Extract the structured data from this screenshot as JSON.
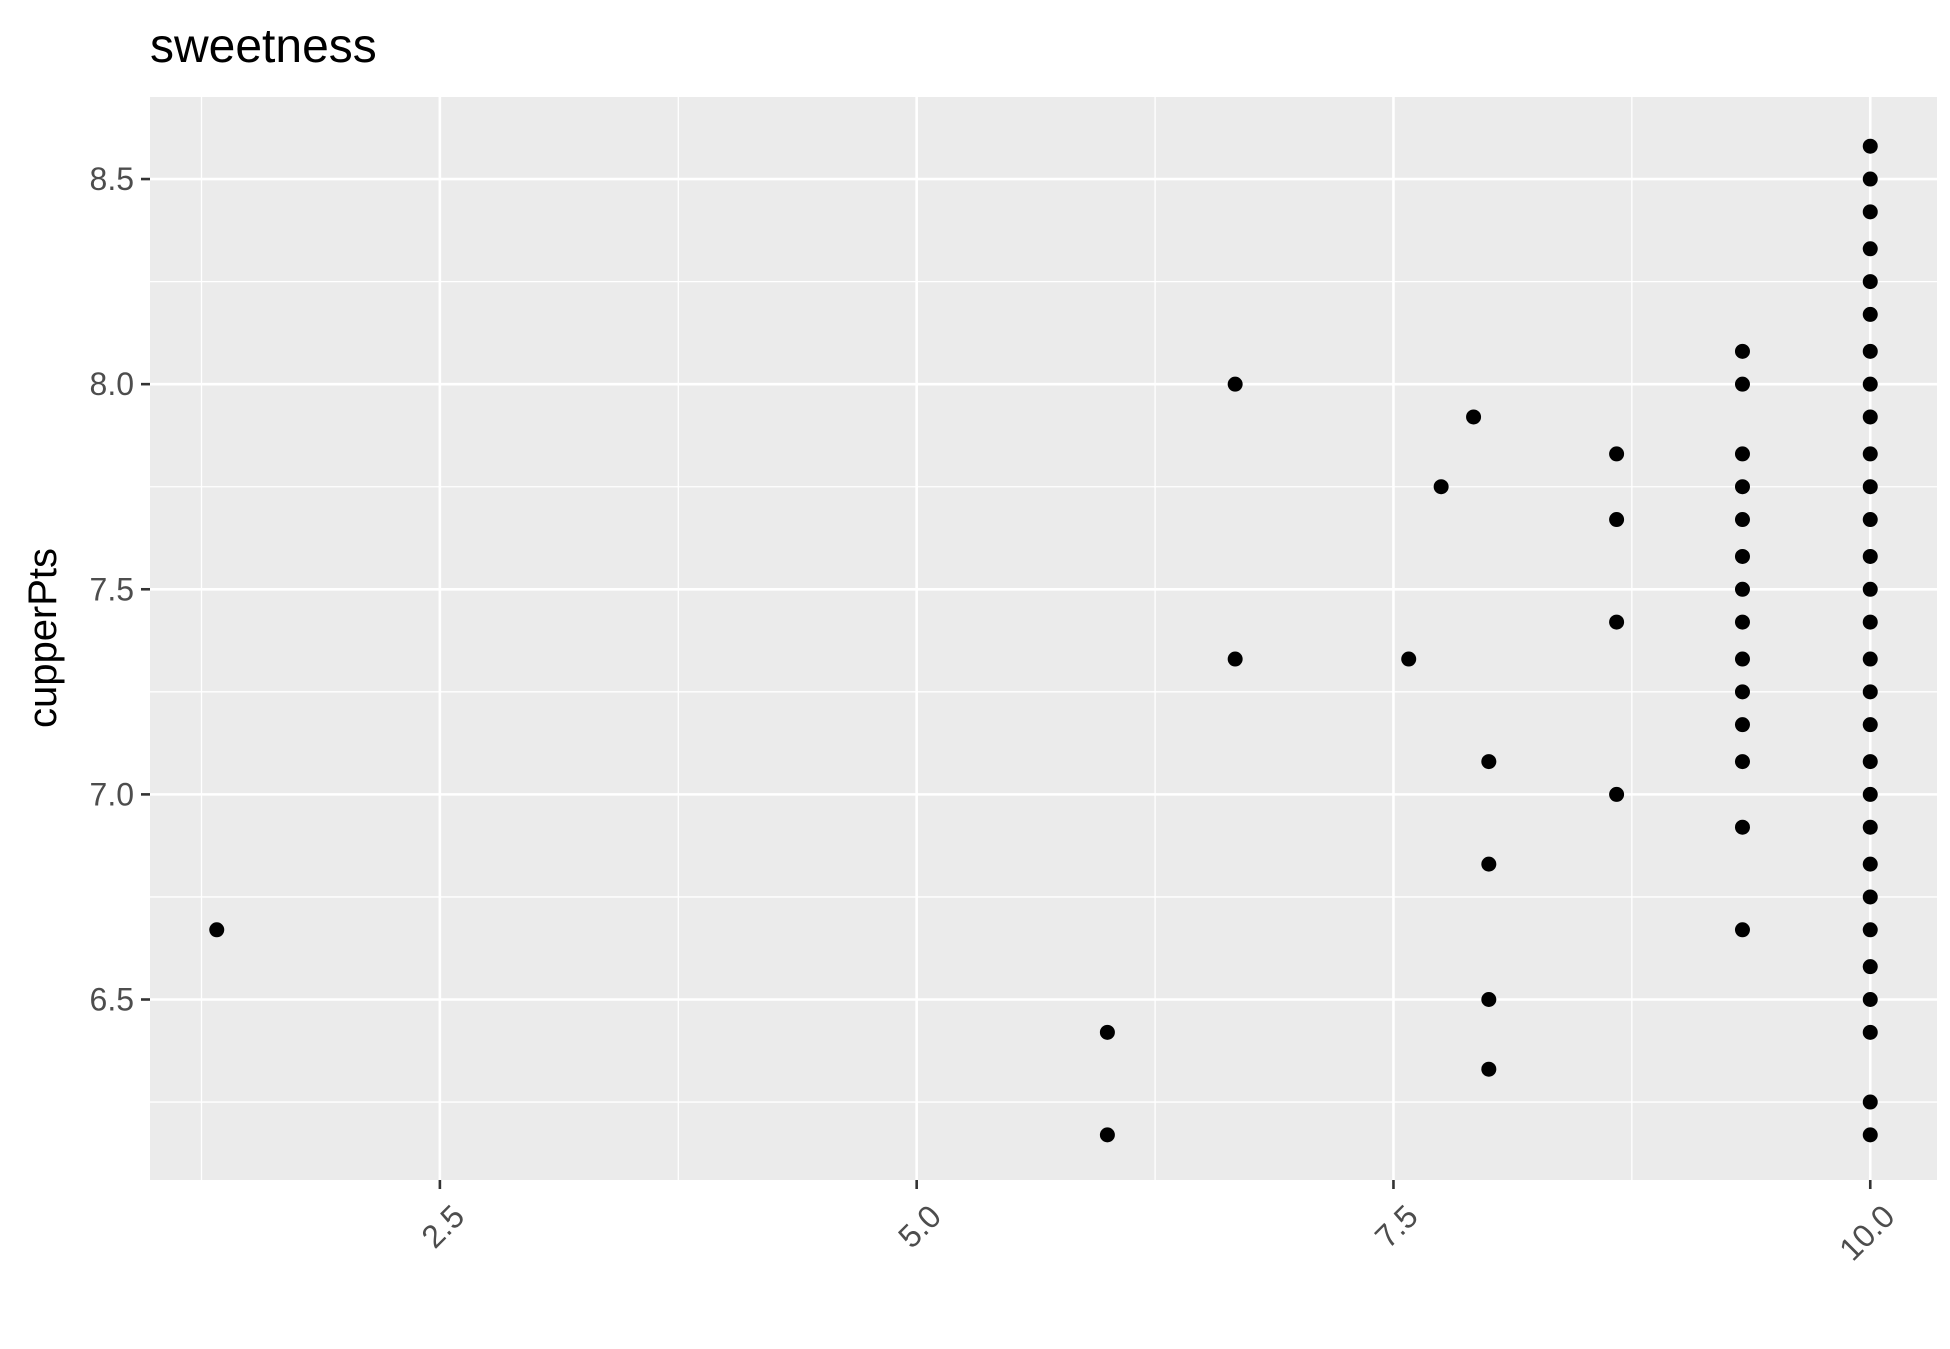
{
  "chart_data": {
    "type": "scatter",
    "title": "sweetness",
    "xlabel": "",
    "ylabel": "cupperPts",
    "xlim": [
      0.98,
      10.35
    ],
    "ylim": [
      6.06,
      8.7
    ],
    "x_ticks": [
      2.5,
      5.0,
      7.5,
      10.0
    ],
    "x_tick_labels": [
      "2.5",
      "5.0",
      "7.5",
      "10.0"
    ],
    "y_ticks": [
      6.5,
      7.0,
      7.5,
      8.0,
      8.5
    ],
    "y_tick_labels": [
      "6.5",
      "7.0",
      "7.5",
      "8.0",
      "8.5"
    ],
    "grid": true,
    "point_color": "#000000",
    "panel_color": "#ebebeb",
    "points": [
      {
        "x": 1.33,
        "y": 6.67
      },
      {
        "x": 6.0,
        "y": 6.42
      },
      {
        "x": 6.0,
        "y": 6.17
      },
      {
        "x": 6.67,
        "y": 8.0
      },
      {
        "x": 6.67,
        "y": 7.33
      },
      {
        "x": 7.58,
        "y": 7.33
      },
      {
        "x": 7.75,
        "y": 7.75
      },
      {
        "x": 7.92,
        "y": 7.92
      },
      {
        "x": 8.0,
        "y": 7.08
      },
      {
        "x": 8.0,
        "y": 6.83
      },
      {
        "x": 8.0,
        "y": 6.5
      },
      {
        "x": 8.0,
        "y": 6.33
      },
      {
        "x": 8.67,
        "y": 7.83
      },
      {
        "x": 8.67,
        "y": 7.67
      },
      {
        "x": 8.67,
        "y": 7.42
      },
      {
        "x": 8.67,
        "y": 7.0
      },
      {
        "x": 9.33,
        "y": 8.08
      },
      {
        "x": 9.33,
        "y": 8.0
      },
      {
        "x": 9.33,
        "y": 7.83
      },
      {
        "x": 9.33,
        "y": 7.75
      },
      {
        "x": 9.33,
        "y": 7.67
      },
      {
        "x": 9.33,
        "y": 7.58
      },
      {
        "x": 9.33,
        "y": 7.5
      },
      {
        "x": 9.33,
        "y": 7.42
      },
      {
        "x": 9.33,
        "y": 7.33
      },
      {
        "x": 9.33,
        "y": 7.25
      },
      {
        "x": 9.33,
        "y": 7.17
      },
      {
        "x": 9.33,
        "y": 7.08
      },
      {
        "x": 9.33,
        "y": 6.92
      },
      {
        "x": 9.33,
        "y": 6.67
      },
      {
        "x": 10.0,
        "y": 8.58
      },
      {
        "x": 10.0,
        "y": 8.5
      },
      {
        "x": 10.0,
        "y": 8.42
      },
      {
        "x": 10.0,
        "y": 8.33
      },
      {
        "x": 10.0,
        "y": 8.25
      },
      {
        "x": 10.0,
        "y": 8.17
      },
      {
        "x": 10.0,
        "y": 8.08
      },
      {
        "x": 10.0,
        "y": 8.0
      },
      {
        "x": 10.0,
        "y": 7.92
      },
      {
        "x": 10.0,
        "y": 7.83
      },
      {
        "x": 10.0,
        "y": 7.75
      },
      {
        "x": 10.0,
        "y": 7.67
      },
      {
        "x": 10.0,
        "y": 7.58
      },
      {
        "x": 10.0,
        "y": 7.5
      },
      {
        "x": 10.0,
        "y": 7.42
      },
      {
        "x": 10.0,
        "y": 7.33
      },
      {
        "x": 10.0,
        "y": 7.25
      },
      {
        "x": 10.0,
        "y": 7.17
      },
      {
        "x": 10.0,
        "y": 7.08
      },
      {
        "x": 10.0,
        "y": 7.0
      },
      {
        "x": 10.0,
        "y": 6.92
      },
      {
        "x": 10.0,
        "y": 6.83
      },
      {
        "x": 10.0,
        "y": 6.75
      },
      {
        "x": 10.0,
        "y": 6.67
      },
      {
        "x": 10.0,
        "y": 6.58
      },
      {
        "x": 10.0,
        "y": 6.5
      },
      {
        "x": 10.0,
        "y": 6.42
      },
      {
        "x": 10.0,
        "y": 6.25
      },
      {
        "x": 10.0,
        "y": 6.17
      }
    ]
  }
}
